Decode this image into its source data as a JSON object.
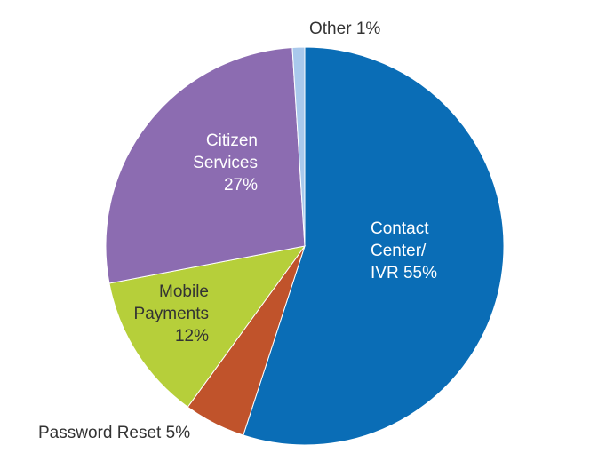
{
  "chart_data": {
    "type": "pie",
    "categories": [
      "Contact Center/ IVR",
      "Password Reset",
      "Mobile Payments",
      "Citizen Services",
      "Other"
    ],
    "values": [
      55,
      5,
      12,
      27,
      1
    ],
    "value_labels": [
      "55%",
      "5%",
      "12%",
      "27%",
      "1%"
    ],
    "colors": [
      "#0a6db6",
      "#c0532b",
      "#b6cf3a",
      "#8c6cb1",
      "#a9c9ec"
    ]
  }
}
